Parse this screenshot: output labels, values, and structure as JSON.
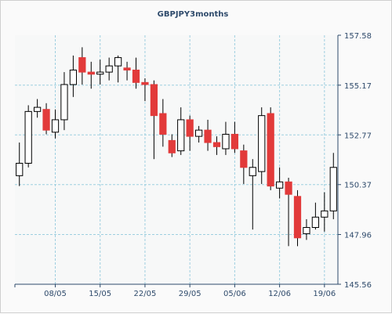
{
  "chart_data": {
    "type": "candlestick",
    "title": "GBPJPY3months",
    "colors": {
      "up_fill": "#ffffff",
      "down_fill": "#e23a3a",
      "outline": "#000000",
      "grid": "#9ecfe0",
      "axis": "#2e4a6b",
      "plot_bg": "#f7f8f8"
    },
    "y_axis": {
      "position": "right",
      "ylim": [
        145.56,
        157.58
      ],
      "ticks": [
        "157.58",
        "155.17",
        "152.77",
        "150.37",
        "147.96",
        "145.56"
      ],
      "tick_values": [
        157.58,
        155.17,
        152.77,
        150.37,
        147.96,
        145.56
      ]
    },
    "x_axis": {
      "tick_labels": [
        "08/05",
        "15/05",
        "22/05",
        "29/05",
        "05/06",
        "12/06",
        "19/06"
      ],
      "tick_index": [
        4,
        9,
        14,
        19,
        24,
        29,
        34
      ]
    },
    "grid": true,
    "candles": [
      {
        "open": 150.8,
        "close": 151.4,
        "high": 152.4,
        "low": 150.3
      },
      {
        "open": 151.4,
        "close": 153.9,
        "high": 154.2,
        "low": 151.2
      },
      {
        "open": 153.9,
        "close": 154.1,
        "high": 154.5,
        "low": 153.6
      },
      {
        "open": 154.0,
        "close": 153.0,
        "high": 154.3,
        "low": 152.8
      },
      {
        "open": 152.9,
        "close": 153.5,
        "high": 154.0,
        "low": 152.6
      },
      {
        "open": 153.5,
        "close": 155.2,
        "high": 155.8,
        "low": 153.0
      },
      {
        "open": 155.2,
        "close": 155.9,
        "high": 156.6,
        "low": 154.6
      },
      {
        "open": 156.5,
        "close": 155.8,
        "high": 157.0,
        "low": 155.2
      },
      {
        "open": 155.8,
        "close": 155.7,
        "high": 156.3,
        "low": 155.0
      },
      {
        "open": 155.7,
        "close": 155.8,
        "high": 156.4,
        "low": 155.2
      },
      {
        "open": 155.8,
        "close": 156.1,
        "high": 156.5,
        "low": 155.4
      },
      {
        "open": 156.1,
        "close": 156.5,
        "high": 156.6,
        "low": 155.3
      },
      {
        "open": 156.0,
        "close": 155.9,
        "high": 156.3,
        "low": 155.4
      },
      {
        "open": 155.9,
        "close": 155.3,
        "high": 156.5,
        "low": 155.0
      },
      {
        "open": 155.3,
        "close": 155.2,
        "high": 155.5,
        "low": 154.4
      },
      {
        "open": 155.2,
        "close": 153.7,
        "high": 155.4,
        "low": 151.6
      },
      {
        "open": 153.8,
        "close": 152.8,
        "high": 154.5,
        "low": 152.2
      },
      {
        "open": 152.5,
        "close": 151.9,
        "high": 152.8,
        "low": 151.7
      },
      {
        "open": 152.0,
        "close": 153.5,
        "high": 154.1,
        "low": 151.8
      },
      {
        "open": 153.5,
        "close": 152.7,
        "high": 153.7,
        "low": 152.0
      },
      {
        "open": 152.7,
        "close": 153.0,
        "high": 153.2,
        "low": 152.4
      },
      {
        "open": 153.0,
        "close": 152.4,
        "high": 153.5,
        "low": 152.0
      },
      {
        "open": 152.4,
        "close": 152.2,
        "high": 152.7,
        "low": 151.8
      },
      {
        "open": 152.1,
        "close": 152.8,
        "high": 153.4,
        "low": 151.8
      },
      {
        "open": 152.8,
        "close": 152.1,
        "high": 153.4,
        "low": 151.9
      },
      {
        "open": 152.0,
        "close": 151.2,
        "high": 152.3,
        "low": 150.4
      },
      {
        "open": 150.8,
        "close": 151.2,
        "high": 151.6,
        "low": 148.2
      },
      {
        "open": 151.0,
        "close": 153.7,
        "high": 154.1,
        "low": 150.4
      },
      {
        "open": 153.8,
        "close": 150.3,
        "high": 154.1,
        "low": 150.1
      },
      {
        "open": 150.2,
        "close": 150.5,
        "high": 151.2,
        "low": 149.7
      },
      {
        "open": 150.5,
        "close": 149.9,
        "high": 150.7,
        "low": 147.4
      },
      {
        "open": 149.8,
        "close": 147.8,
        "high": 150.1,
        "low": 147.4
      },
      {
        "open": 148.0,
        "close": 148.3,
        "high": 148.7,
        "low": 147.7
      },
      {
        "open": 148.3,
        "close": 148.8,
        "high": 149.5,
        "low": 148.2
      },
      {
        "open": 148.8,
        "close": 149.1,
        "high": 150.0,
        "low": 148.1
      },
      {
        "open": 149.1,
        "close": 151.2,
        "high": 151.9,
        "low": 148.7
      }
    ]
  }
}
